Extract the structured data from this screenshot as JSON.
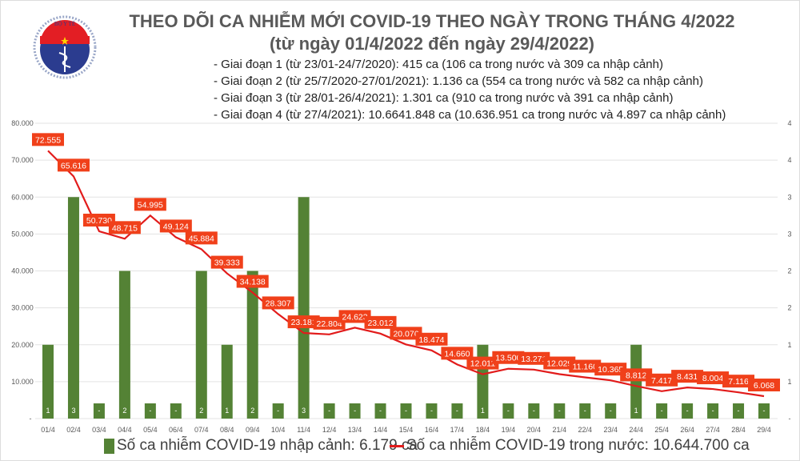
{
  "header": {
    "title_line1": "THEO DÕI CA NHIỄM MỚI COVID-19 THEO NGÀY TRONG THÁNG 4/2022",
    "title_line2": "(từ ngày 01/4/2022 đến ngày 29/4/2022)",
    "phases": [
      "- Giai đoạn 1 (từ 23/01-24/7/2020): 415 ca (106 ca trong nước và 309 ca nhập cảnh)",
      "- Giai đoạn 2 (từ 25/7/2020-27/01/2021): 1.136 ca (554 ca trong nước và 582 ca nhập cảnh)",
      "- Giai đoạn 3 (từ 28/01-26/4/2021): 1.301 ca (910 ca trong nước và 391 ca nhập cảnh)",
      "- Giai đoạn 4 (từ 27/4/2021): 10.6641.848 ca (10.636.951 ca trong nước và 4.897 ca nhập cảnh)"
    ],
    "logo_text": "BỘ Y TẾ - MINISTRY OF HEALTH"
  },
  "chart_data": {
    "type": "bar+line",
    "categories": [
      "01/4",
      "02/4",
      "03/4",
      "04/4",
      "05/4",
      "06/4",
      "07/4",
      "08/4",
      "09/4",
      "10/4",
      "11/4",
      "12/4",
      "13/4",
      "14/4",
      "15/4",
      "16/4",
      "17/4",
      "18/4",
      "19/4",
      "20/4",
      "21/4",
      "22/4",
      "23/4",
      "24/4",
      "25/4",
      "26/4",
      "27/4",
      "28/4",
      "29/4"
    ],
    "series": [
      {
        "name": "Số ca nhiễm COVID-19 nhập cảnh: 6.179 ca",
        "type": "bar",
        "axis": "right",
        "color": "#548235",
        "values": [
          1,
          3,
          0,
          2,
          0,
          0,
          2,
          1,
          2,
          0,
          3,
          0,
          0,
          0,
          0,
          0,
          0,
          1,
          0,
          0,
          0,
          0,
          0,
          1,
          0,
          0,
          0,
          0,
          0
        ],
        "labels": [
          "1",
          "3",
          "-",
          "2",
          "-",
          "-",
          "2",
          "1",
          "2",
          "-",
          "3",
          "-",
          "-",
          "-",
          "-",
          "-",
          "-",
          "1",
          "-",
          "-",
          "-",
          "-",
          "-",
          "1",
          "-",
          "-",
          "-",
          "-",
          "-"
        ]
      },
      {
        "name": "Số ca nhiễm COVID-19 trong nước: 10.644.700 ca",
        "type": "line",
        "axis": "left",
        "color": "#e21b1b",
        "label_color": "#f0401a",
        "values": [
          72555,
          65616,
          50730,
          48715,
          54995,
          49124,
          45884,
          39333,
          34138,
          28307,
          23181,
          22804,
          24623,
          23012,
          20076,
          18474,
          14660,
          12011,
          13500,
          13271,
          12029,
          11160,
          10365,
          8812,
          7417,
          8431,
          8004,
          7116,
          6068
        ],
        "labels": [
          "72.555",
          "65.616",
          "50.730",
          "48.715",
          "54.995",
          "49.124",
          "45.884",
          "39.333",
          "34.138",
          "28.307",
          "23.181",
          "22.804",
          "24.623",
          "23.012",
          "20.076",
          "18.474",
          "14.660",
          "12.011",
          "13.500",
          "13.271",
          "12.029",
          "11.160",
          "10.365",
          "8.812",
          "7.417",
          "8.431",
          "8.004",
          "7.116",
          "6.068"
        ]
      }
    ],
    "y_left": {
      "range": [
        0,
        80000
      ],
      "ticks": [
        "-",
        "10.000",
        "20.000",
        "30.000",
        "40.000",
        "50.000",
        "60.000",
        "70.000",
        "80.000"
      ]
    },
    "y_right": {
      "range": [
        0,
        4
      ],
      "ticks": [
        "-",
        "1",
        "1",
        "2",
        "2",
        "3",
        "3",
        "4",
        "4"
      ]
    },
    "grid": true,
    "legend_position": "bottom"
  }
}
